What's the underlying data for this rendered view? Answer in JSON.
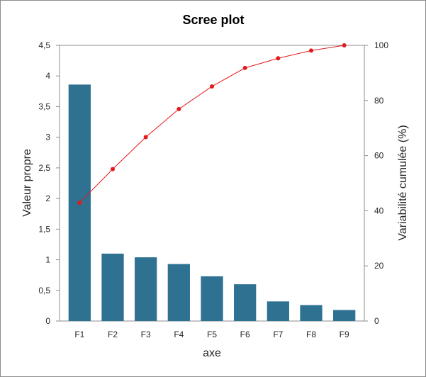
{
  "chart_data": {
    "type": "bar",
    "title": "Scree plot",
    "xlabel": "axe",
    "ylabel": "Valeur propre",
    "y2label": "Variabilité cumulée (%)",
    "categories": [
      "F1",
      "F2",
      "F3",
      "F4",
      "F5",
      "F6",
      "F7",
      "F8",
      "F9"
    ],
    "series": [
      {
        "type": "bar",
        "axis": "left",
        "values": [
          3.86,
          1.1,
          1.04,
          0.93,
          0.73,
          0.6,
          0.32,
          0.26,
          0.18
        ]
      },
      {
        "type": "line",
        "axis": "right",
        "values": [
          42.9,
          55.1,
          66.7,
          76.9,
          85.1,
          91.8,
          95.3,
          98.1,
          100.0
        ]
      }
    ],
    "ylim": [
      0,
      4.5
    ],
    "y2lim": [
      0,
      100
    ],
    "yticks": [
      "0",
      "0,5",
      "1",
      "1,5",
      "2",
      "2,5",
      "3",
      "3,5",
      "4",
      "4,5"
    ],
    "y2ticks": [
      "0",
      "20",
      "40",
      "60",
      "80",
      "100"
    ],
    "grid": false,
    "colors": {
      "bar": "#2e7191",
      "line": "#e31a1c",
      "axis": "#8c8c8c"
    }
  }
}
